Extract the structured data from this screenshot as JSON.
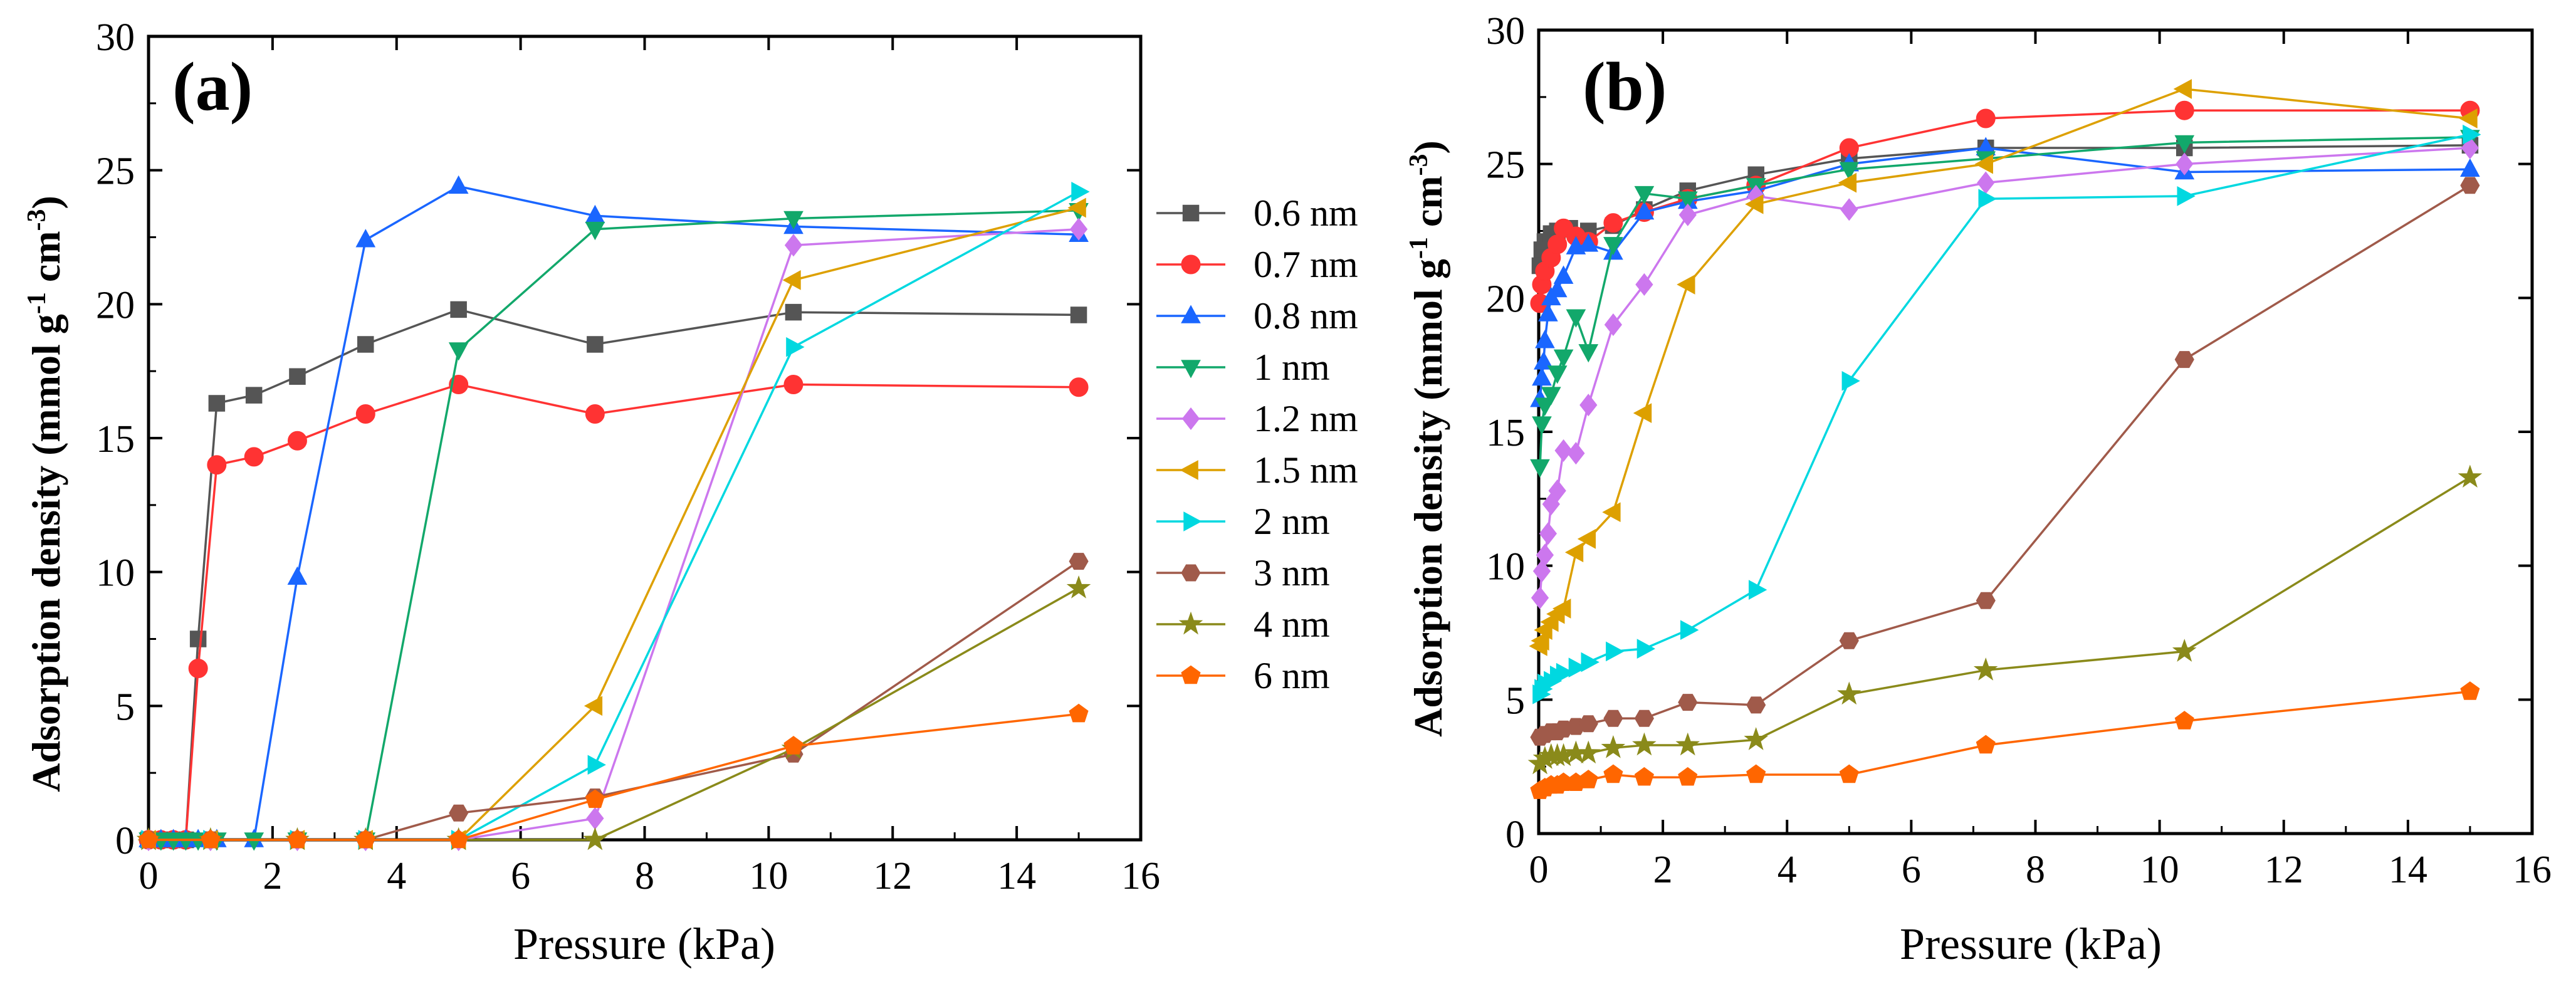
{
  "figure": {
    "legend_labels": [
      "0.6 nm",
      "0.7 nm",
      "0.8 nm",
      "1 nm",
      "1.2 nm",
      "1.5 nm",
      "2 nm",
      "3 nm",
      "4 nm",
      "6 nm"
    ]
  },
  "chart_data": [
    {
      "panel": "(a)",
      "type": "line",
      "xlabel": "Pressure (kPa)",
      "ylabel_main": "Adsorption density (mmol g",
      "ylabel_sup1": "-1",
      "ylabel_mid": " cm",
      "ylabel_sup2": "-3",
      "ylabel_end": ")",
      "xlim": [
        0,
        16
      ],
      "ylim": [
        0,
        30
      ],
      "xticks": [
        0,
        2,
        4,
        6,
        8,
        10,
        12,
        14,
        16
      ],
      "yticks": [
        0,
        5,
        10,
        15,
        20,
        25,
        30
      ],
      "legend": "right-outside",
      "series": [
        {
          "name": "0.6 nm",
          "color": "#555555",
          "marker": "square",
          "x": [
            0,
            0.2,
            0.4,
            0.6,
            0.8,
            1.1,
            1.7,
            2.4,
            3.5,
            5.0,
            7.2,
            10.4,
            15.0
          ],
          "y": [
            0,
            0,
            0,
            0,
            7.5,
            16.3,
            16.6,
            17.3,
            18.5,
            19.8,
            18.5,
            19.7,
            19.6
          ]
        },
        {
          "name": "0.7 nm",
          "color": "#ff3333",
          "marker": "circle",
          "x": [
            0,
            0.2,
            0.4,
            0.6,
            0.8,
            1.1,
            1.7,
            2.4,
            3.5,
            5.0,
            7.2,
            10.4,
            15.0
          ],
          "y": [
            0,
            0,
            0,
            0,
            6.4,
            14.0,
            14.3,
            14.9,
            15.9,
            17.0,
            15.9,
            17.0,
            16.9
          ]
        },
        {
          "name": "0.8 nm",
          "color": "#1a66ff",
          "marker": "triangle-up",
          "x": [
            0,
            0.2,
            0.4,
            0.6,
            0.8,
            1.1,
            1.7,
            2.4,
            3.5,
            5.0,
            7.2,
            10.4,
            15.0
          ],
          "y": [
            0,
            0,
            0,
            0,
            0,
            0,
            0,
            9.8,
            22.4,
            24.4,
            23.3,
            22.9,
            22.6
          ]
        },
        {
          "name": "1 nm",
          "color": "#12a86b",
          "marker": "triangle-down",
          "x": [
            0,
            0.2,
            0.4,
            0.6,
            0.8,
            1.1,
            1.7,
            2.4,
            3.5,
            5.0,
            7.2,
            10.4,
            15.0
          ],
          "y": [
            0,
            0,
            0,
            0,
            0,
            0,
            0,
            0,
            0,
            18.3,
            22.8,
            23.2,
            23.5
          ]
        },
        {
          "name": "1.2 nm",
          "color": "#cc77ee",
          "marker": "diamond",
          "x": [
            0,
            1.0,
            2.4,
            3.5,
            5.0,
            7.2,
            10.4,
            15.0
          ],
          "y": [
            0,
            0,
            0,
            0,
            0,
            0.8,
            22.2,
            22.8
          ]
        },
        {
          "name": "1.5 nm",
          "color": "#dda000",
          "marker": "triangle-left",
          "x": [
            0,
            1.0,
            2.4,
            3.5,
            5.0,
            7.2,
            10.4,
            15.0
          ],
          "y": [
            0,
            0,
            0,
            0,
            0,
            5.0,
            20.9,
            23.6
          ]
        },
        {
          "name": "2 nm",
          "color": "#00d8e0",
          "marker": "triangle-right",
          "x": [
            0,
            1.0,
            2.4,
            3.5,
            5.0,
            7.2,
            10.4,
            15.0
          ],
          "y": [
            0,
            0,
            0,
            0,
            0,
            2.8,
            18.4,
            24.2
          ]
        },
        {
          "name": "3 nm",
          "color": "#a05a4a",
          "marker": "hexagon",
          "x": [
            0,
            1.0,
            2.4,
            3.5,
            5.0,
            7.2,
            10.4,
            15.0
          ],
          "y": [
            0,
            0,
            0,
            0,
            1.0,
            1.6,
            3.2,
            10.4
          ]
        },
        {
          "name": "4 nm",
          "color": "#8a8a1a",
          "marker": "star",
          "x": [
            0,
            1.0,
            2.4,
            3.5,
            5.0,
            7.2,
            10.4,
            15.0
          ],
          "y": [
            0,
            0,
            0,
            0,
            0,
            0,
            3.4,
            9.4
          ]
        },
        {
          "name": "6 nm",
          "color": "#ff6600",
          "marker": "pentagon",
          "x": [
            0,
            1.0,
            2.4,
            3.5,
            5.0,
            7.2,
            10.4,
            15.0
          ],
          "y": [
            0,
            0,
            0,
            0,
            0,
            1.5,
            3.5,
            4.7
          ]
        }
      ]
    },
    {
      "panel": "(b)",
      "type": "line",
      "xlabel": "Pressure (kPa)",
      "ylabel_main": "Adsorption density (mmol g",
      "ylabel_sup1": "-1",
      "ylabel_mid": " cm",
      "ylabel_sup2": "-3",
      "ylabel_end": ")",
      "xlim": [
        0,
        16
      ],
      "ylim": [
        0,
        30
      ],
      "xticks": [
        0,
        2,
        4,
        6,
        8,
        10,
        12,
        14,
        16
      ],
      "yticks": [
        0,
        5,
        10,
        15,
        20,
        25,
        30
      ],
      "legend": "none",
      "series": [
        {
          "name": "0.6 nm",
          "color": "#555555",
          "marker": "square",
          "x": [
            0.02,
            0.05,
            0.1,
            0.2,
            0.3,
            0.5,
            0.8,
            1.2,
            1.7,
            2.4,
            3.5,
            5.0,
            7.2,
            10.4,
            15.0
          ],
          "y": [
            21.2,
            21.8,
            22.1,
            22.4,
            22.5,
            22.6,
            22.5,
            22.7,
            23.3,
            24.0,
            24.6,
            25.2,
            25.6,
            25.6,
            25.7
          ]
        },
        {
          "name": "0.7 nm",
          "color": "#ff3333",
          "marker": "circle",
          "x": [
            0.02,
            0.05,
            0.1,
            0.2,
            0.3,
            0.4,
            0.6,
            0.8,
            1.2,
            1.7,
            2.4,
            3.5,
            5.0,
            7.2,
            10.4,
            15.0
          ],
          "y": [
            19.8,
            20.5,
            21.0,
            21.5,
            22.0,
            22.6,
            22.3,
            22.1,
            22.8,
            23.2,
            23.7,
            24.2,
            25.6,
            26.7,
            27.0,
            27.0
          ]
        },
        {
          "name": "0.8 nm",
          "color": "#1a66ff",
          "marker": "triangle-up",
          "x": [
            0.02,
            0.05,
            0.08,
            0.1,
            0.15,
            0.2,
            0.3,
            0.4,
            0.6,
            0.8,
            1.2,
            1.7,
            2.4,
            3.5,
            5.0,
            7.2,
            10.4,
            15.0
          ],
          "y": [
            16.2,
            17.0,
            17.6,
            18.4,
            19.4,
            20.0,
            20.3,
            20.8,
            21.9,
            22.0,
            21.7,
            23.2,
            23.6,
            24.0,
            25.0,
            25.6,
            24.7,
            24.8
          ]
        },
        {
          "name": "1 nm",
          "color": "#12a86b",
          "marker": "triangle-down",
          "x": [
            0.02,
            0.05,
            0.1,
            0.2,
            0.3,
            0.4,
            0.6,
            0.8,
            1.2,
            1.7,
            2.4,
            3.5,
            5.0,
            7.2,
            10.4,
            15.0
          ],
          "y": [
            13.7,
            15.3,
            16.0,
            16.4,
            17.2,
            17.8,
            19.3,
            18.0,
            22.0,
            23.9,
            23.7,
            24.2,
            24.8,
            25.2,
            25.8,
            26.0
          ]
        },
        {
          "name": "1.2 nm",
          "color": "#cc77ee",
          "marker": "diamond",
          "x": [
            0.02,
            0.05,
            0.1,
            0.15,
            0.2,
            0.3,
            0.4,
            0.6,
            0.8,
            1.2,
            1.7,
            2.4,
            3.5,
            5.0,
            7.2,
            10.4,
            15.0
          ],
          "y": [
            8.8,
            9.8,
            10.4,
            11.2,
            12.3,
            12.8,
            14.3,
            14.2,
            16.0,
            19.0,
            20.5,
            23.1,
            23.8,
            23.3,
            24.3,
            25.0,
            25.6
          ]
        },
        {
          "name": "1.5 nm",
          "color": "#dda000",
          "marker": "triangle-left",
          "x": [
            0.02,
            0.05,
            0.1,
            0.2,
            0.3,
            0.4,
            0.6,
            0.8,
            1.2,
            1.7,
            2.4,
            3.5,
            5.0,
            7.2,
            10.4,
            15.0
          ],
          "y": [
            7.0,
            7.2,
            7.6,
            7.9,
            8.2,
            8.4,
            10.5,
            11.0,
            12.0,
            15.7,
            20.5,
            23.5,
            24.3,
            25.0,
            27.8,
            26.7
          ]
        },
        {
          "name": "2 nm",
          "color": "#00d8e0",
          "marker": "triangle-right",
          "x": [
            0.02,
            0.05,
            0.1,
            0.2,
            0.3,
            0.4,
            0.6,
            0.8,
            1.2,
            1.7,
            2.4,
            3.5,
            5.0,
            7.2,
            10.4,
            15.0
          ],
          "y": [
            5.2,
            5.4,
            5.6,
            5.7,
            5.9,
            6.0,
            6.2,
            6.4,
            6.8,
            6.9,
            7.6,
            9.1,
            16.9,
            23.7,
            23.8,
            26.1
          ]
        },
        {
          "name": "3 nm",
          "color": "#a05a4a",
          "marker": "hexagon",
          "x": [
            0.02,
            0.1,
            0.2,
            0.3,
            0.4,
            0.6,
            0.8,
            1.2,
            1.7,
            2.4,
            3.5,
            5.0,
            7.2,
            10.4,
            15.0
          ],
          "y": [
            3.6,
            3.7,
            3.8,
            3.8,
            3.9,
            4.0,
            4.1,
            4.3,
            4.3,
            4.9,
            4.8,
            7.2,
            8.7,
            17.7,
            24.2
          ]
        },
        {
          "name": "4 nm",
          "color": "#8a8a1a",
          "marker": "star",
          "x": [
            0.02,
            0.1,
            0.2,
            0.3,
            0.4,
            0.6,
            0.8,
            1.2,
            1.7,
            2.4,
            3.5,
            5.0,
            7.2,
            10.4,
            15.0
          ],
          "y": [
            2.6,
            2.8,
            2.9,
            2.9,
            2.9,
            3.0,
            3.0,
            3.2,
            3.3,
            3.3,
            3.5,
            5.2,
            6.1,
            6.8,
            13.3
          ]
        },
        {
          "name": "6 nm",
          "color": "#ff6600",
          "marker": "pentagon",
          "x": [
            0.02,
            0.1,
            0.2,
            0.3,
            0.4,
            0.6,
            0.8,
            1.2,
            1.7,
            2.4,
            3.5,
            5.0,
            7.2,
            10.4,
            15.0
          ],
          "y": [
            1.6,
            1.7,
            1.8,
            1.8,
            1.9,
            1.9,
            2.0,
            2.2,
            2.1,
            2.1,
            2.2,
            2.2,
            3.3,
            4.2,
            5.3
          ]
        }
      ]
    }
  ]
}
